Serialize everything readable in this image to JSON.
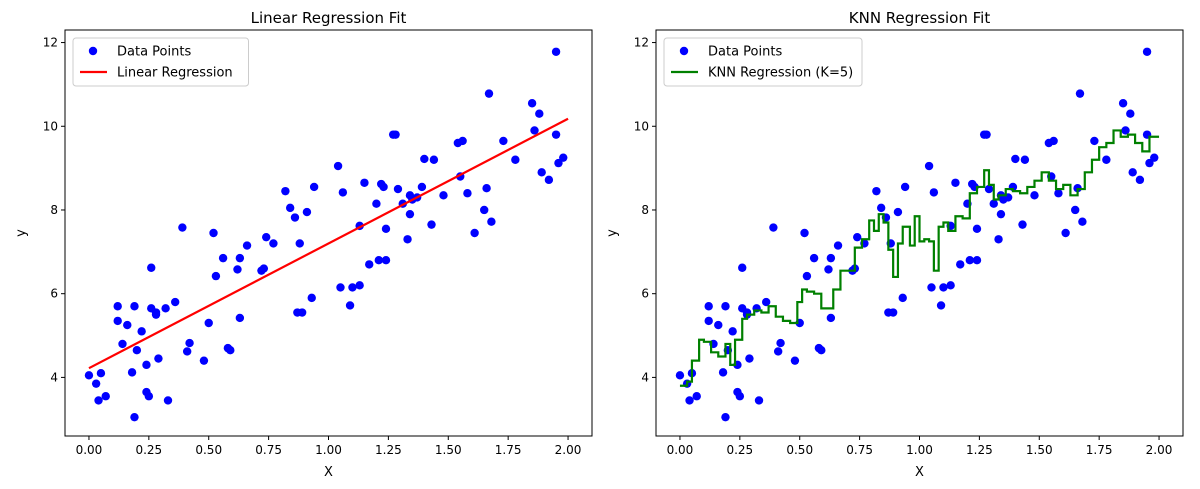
{
  "chart_data": [
    {
      "type": "scatter",
      "title": "Linear Regression Fit",
      "xlabel": "X",
      "ylabel": "y",
      "xlim": [
        -0.1,
        2.1
      ],
      "ylim": [
        2.6,
        12.3
      ],
      "xticks": [
        "0.00",
        "0.25",
        "0.50",
        "0.75",
        "1.00",
        "1.25",
        "1.50",
        "1.75",
        "2.00"
      ],
      "yticks": [
        "4",
        "6",
        "8",
        "10",
        "12"
      ],
      "legend_position": "top-left",
      "grid": false,
      "series": [
        {
          "name": "Data Points",
          "kind": "scatter",
          "color": "#0000ff",
          "x": [
            0.0,
            0.03,
            0.04,
            0.05,
            0.07,
            0.12,
            0.12,
            0.14,
            0.16,
            0.18,
            0.19,
            0.19,
            0.2,
            0.22,
            0.24,
            0.24,
            0.25,
            0.26,
            0.26,
            0.28,
            0.28,
            0.29,
            0.32,
            0.33,
            0.36,
            0.39,
            0.41,
            0.42,
            0.48,
            0.5,
            0.52,
            0.53,
            0.56,
            0.58,
            0.59,
            0.62,
            0.63,
            0.63,
            0.66,
            0.72,
            0.73,
            0.74,
            0.77,
            0.82,
            0.84,
            0.86,
            0.87,
            0.88,
            0.89,
            0.91,
            0.93,
            0.94,
            1.04,
            1.05,
            1.06,
            1.09,
            1.1,
            1.13,
            1.13,
            1.15,
            1.17,
            1.2,
            1.21,
            1.22,
            1.23,
            1.24,
            1.24,
            1.27,
            1.28,
            1.29,
            1.31,
            1.33,
            1.34,
            1.34,
            1.35,
            1.37,
            1.39,
            1.4,
            1.43,
            1.44,
            1.48,
            1.54,
            1.55,
            1.56,
            1.58,
            1.61,
            1.65,
            1.66,
            1.67,
            1.68,
            1.73,
            1.78,
            1.85,
            1.86,
            1.88,
            1.89,
            1.92,
            1.95,
            1.95,
            1.96,
            1.98
          ],
          "y": [
            4.05,
            3.85,
            3.45,
            4.1,
            3.55,
            5.7,
            5.35,
            4.8,
            5.25,
            4.12,
            5.7,
            3.05,
            4.65,
            5.1,
            4.3,
            3.65,
            3.55,
            6.62,
            5.65,
            5.55,
            5.5,
            4.45,
            5.65,
            3.45,
            5.8,
            7.58,
            4.62,
            4.82,
            4.4,
            5.3,
            7.45,
            6.42,
            6.85,
            4.7,
            4.65,
            6.58,
            5.42,
            6.85,
            7.15,
            6.55,
            6.6,
            7.35,
            7.2,
            8.45,
            8.05,
            7.82,
            5.55,
            7.2,
            5.55,
            7.95,
            5.9,
            8.55,
            9.05,
            6.15,
            8.42,
            5.72,
            6.15,
            6.2,
            7.62,
            8.65,
            6.7,
            8.15,
            6.8,
            8.62,
            8.55,
            7.55,
            6.8,
            9.8,
            9.8,
            8.5,
            8.15,
            7.3,
            8.35,
            7.9,
            8.25,
            8.3,
            8.55,
            9.22,
            7.65,
            9.2,
            8.35,
            9.6,
            8.8,
            9.65,
            8.4,
            7.45,
            8.0,
            8.52,
            10.78,
            7.72,
            9.65,
            9.2,
            10.55,
            9.9,
            10.3,
            8.9,
            8.72,
            11.78,
            9.8,
            9.12,
            9.25
          ]
        },
        {
          "name": "Linear Regression",
          "kind": "line",
          "color": "#ff0000",
          "x": [
            0.0,
            2.0
          ],
          "y": [
            4.22,
            10.18
          ]
        }
      ]
    },
    {
      "type": "scatter",
      "title": "KNN Regression Fit",
      "xlabel": "X",
      "ylabel": "y",
      "xlim": [
        -0.1,
        2.1
      ],
      "ylim": [
        2.6,
        12.3
      ],
      "xticks": [
        "0.00",
        "0.25",
        "0.50",
        "0.75",
        "1.00",
        "1.25",
        "1.50",
        "1.75",
        "2.00"
      ],
      "yticks": [
        "4",
        "6",
        "8",
        "10",
        "12"
      ],
      "legend_position": "top-left",
      "grid": false,
      "series": [
        {
          "name": "Data Points",
          "kind": "scatter",
          "color": "#0000ff",
          "x": [
            0.0,
            0.03,
            0.04,
            0.05,
            0.07,
            0.12,
            0.12,
            0.14,
            0.16,
            0.18,
            0.19,
            0.19,
            0.2,
            0.22,
            0.24,
            0.24,
            0.25,
            0.26,
            0.26,
            0.28,
            0.28,
            0.29,
            0.32,
            0.33,
            0.36,
            0.39,
            0.41,
            0.42,
            0.48,
            0.5,
            0.52,
            0.53,
            0.56,
            0.58,
            0.59,
            0.62,
            0.63,
            0.63,
            0.66,
            0.72,
            0.73,
            0.74,
            0.77,
            0.82,
            0.84,
            0.86,
            0.87,
            0.88,
            0.89,
            0.91,
            0.93,
            0.94,
            1.04,
            1.05,
            1.06,
            1.09,
            1.1,
            1.13,
            1.13,
            1.15,
            1.17,
            1.2,
            1.21,
            1.22,
            1.23,
            1.24,
            1.24,
            1.27,
            1.28,
            1.29,
            1.31,
            1.33,
            1.34,
            1.34,
            1.35,
            1.37,
            1.39,
            1.4,
            1.43,
            1.44,
            1.48,
            1.54,
            1.55,
            1.56,
            1.58,
            1.61,
            1.65,
            1.66,
            1.67,
            1.68,
            1.73,
            1.78,
            1.85,
            1.86,
            1.88,
            1.89,
            1.92,
            1.95,
            1.95,
            1.96,
            1.98
          ],
          "y": [
            4.05,
            3.85,
            3.45,
            4.1,
            3.55,
            5.7,
            5.35,
            4.8,
            5.25,
            4.12,
            5.7,
            3.05,
            4.65,
            5.1,
            4.3,
            3.65,
            3.55,
            6.62,
            5.65,
            5.55,
            5.5,
            4.45,
            5.65,
            3.45,
            5.8,
            7.58,
            4.62,
            4.82,
            4.4,
            5.3,
            7.45,
            6.42,
            6.85,
            4.7,
            4.65,
            6.58,
            5.42,
            6.85,
            7.15,
            6.55,
            6.6,
            7.35,
            7.2,
            8.45,
            8.05,
            7.82,
            5.55,
            7.2,
            5.55,
            7.95,
            5.9,
            8.55,
            9.05,
            6.15,
            8.42,
            5.72,
            6.15,
            6.2,
            7.62,
            8.65,
            6.7,
            8.15,
            6.8,
            8.62,
            8.55,
            7.55,
            6.8,
            9.8,
            9.8,
            8.5,
            8.15,
            7.3,
            8.35,
            7.9,
            8.25,
            8.3,
            8.55,
            9.22,
            7.65,
            9.2,
            8.35,
            9.6,
            8.8,
            9.65,
            8.4,
            7.45,
            8.0,
            8.52,
            10.78,
            7.72,
            9.65,
            9.2,
            10.55,
            9.9,
            10.3,
            8.9,
            8.72,
            11.78,
            9.8,
            9.12,
            9.25
          ]
        },
        {
          "name": "KNN Regression (K=5)",
          "kind": "step",
          "color": "#008000",
          "x": [
            0.0,
            0.03,
            0.05,
            0.08,
            0.1,
            0.13,
            0.16,
            0.19,
            0.21,
            0.23,
            0.26,
            0.28,
            0.31,
            0.34,
            0.37,
            0.4,
            0.43,
            0.46,
            0.49,
            0.51,
            0.53,
            0.56,
            0.59,
            0.62,
            0.64,
            0.67,
            0.7,
            0.73,
            0.76,
            0.79,
            0.81,
            0.83,
            0.85,
            0.87,
            0.89,
            0.91,
            0.93,
            0.96,
            0.98,
            1.0,
            1.02,
            1.04,
            1.06,
            1.08,
            1.1,
            1.12,
            1.15,
            1.18,
            1.21,
            1.24,
            1.27,
            1.29,
            1.31,
            1.33,
            1.36,
            1.39,
            1.42,
            1.45,
            1.48,
            1.51,
            1.54,
            1.57,
            1.6,
            1.63,
            1.66,
            1.69,
            1.72,
            1.75,
            1.78,
            1.81,
            1.84,
            1.87,
            1.9,
            1.93,
            1.96,
            2.0
          ],
          "y": [
            3.8,
            3.9,
            4.4,
            4.9,
            4.85,
            4.6,
            4.5,
            4.8,
            4.3,
            4.9,
            5.4,
            5.5,
            5.6,
            5.55,
            5.7,
            5.45,
            5.35,
            5.3,
            5.8,
            6.1,
            6.05,
            6.0,
            5.65,
            5.65,
            6.1,
            6.55,
            6.55,
            7.1,
            7.3,
            7.75,
            7.5,
            7.9,
            7.7,
            7.05,
            6.4,
            7.2,
            7.6,
            7.15,
            7.85,
            7.25,
            7.3,
            7.25,
            6.55,
            7.6,
            7.7,
            7.5,
            7.85,
            7.8,
            8.4,
            8.55,
            8.95,
            8.6,
            8.25,
            8.35,
            8.5,
            8.45,
            8.4,
            8.55,
            8.7,
            8.9,
            8.7,
            8.5,
            8.6,
            8.35,
            8.5,
            8.9,
            9.2,
            9.5,
            9.6,
            9.9,
            9.75,
            9.8,
            9.6,
            9.4,
            9.75,
            9.75
          ]
        }
      ]
    }
  ]
}
